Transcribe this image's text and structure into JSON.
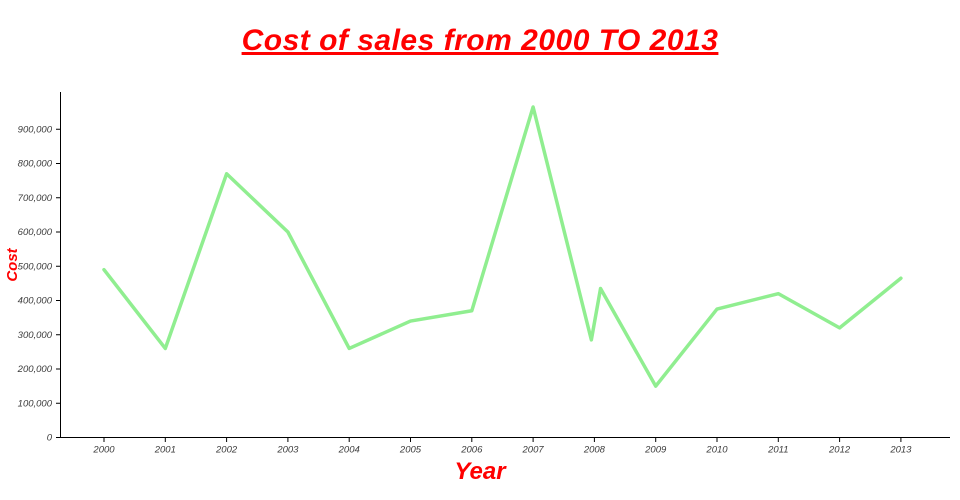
{
  "chart_data": {
    "type": "line",
    "title": "Cost of sales from 2000 TO 2013",
    "xlabel": "Year",
    "ylabel": "Cost",
    "accent_color": "#ff0000",
    "line_color": "#90ee90",
    "axis_color": "#000000",
    "tick_label_color": "#3c3c3c",
    "grid": false,
    "legend": null,
    "x": [
      2000,
      2001,
      2002,
      2003,
      2004,
      2005,
      2006,
      2007,
      2007.95,
      2008.1,
      2009,
      2010,
      2011,
      2012,
      2013
    ],
    "values": [
      490000,
      260000,
      770000,
      600000,
      260000,
      340000,
      370000,
      965000,
      285000,
      435000,
      150000,
      375000,
      420000,
      320000,
      465000
    ],
    "xticks": [
      2000,
      2001,
      2002,
      2003,
      2004,
      2005,
      2006,
      2007,
      2008,
      2009,
      2010,
      2011,
      2012,
      2013
    ],
    "yticks": [
      0,
      100000,
      200000,
      300000,
      400000,
      500000,
      600000,
      700000,
      800000,
      900000
    ],
    "ylim": [
      0,
      1000000
    ],
    "xlim": [
      2000,
      2013
    ]
  }
}
